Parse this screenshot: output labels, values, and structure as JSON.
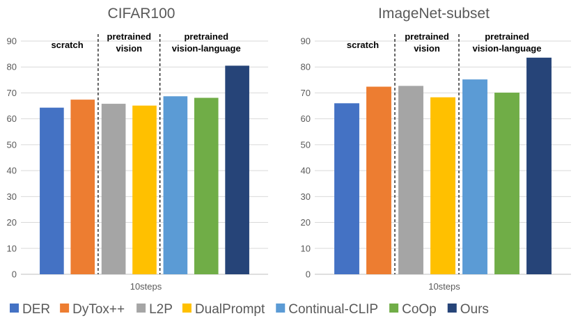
{
  "chart_data": [
    {
      "type": "bar",
      "title": "CIFAR100",
      "xlabel": "10steps",
      "ylabel": "",
      "ylim": [
        0,
        90
      ],
      "yticks": [
        0,
        10,
        20,
        30,
        40,
        50,
        60,
        70,
        80,
        90
      ],
      "grid": true,
      "categories": [
        "10steps"
      ],
      "group_labels": [
        {
          "lines": [
            "scratch"
          ]
        },
        {
          "lines": [
            "pretrained",
            "vision"
          ]
        },
        {
          "lines": [
            "pretrained",
            "vision-language"
          ]
        }
      ],
      "series": [
        {
          "name": "DER",
          "values": [
            64.3
          ]
        },
        {
          "name": "DyTox++",
          "values": [
            67.4
          ]
        },
        {
          "name": "L2P",
          "values": [
            65.8
          ]
        },
        {
          "name": "DualPrompt",
          "values": [
            65.1
          ]
        },
        {
          "name": "Continual-CLIP",
          "values": [
            68.7
          ]
        },
        {
          "name": "CoOp",
          "values": [
            68.1
          ]
        },
        {
          "name": "Ours",
          "values": [
            80.5
          ]
        }
      ]
    },
    {
      "type": "bar",
      "title": "ImageNet-subset",
      "xlabel": "10steps",
      "ylabel": "",
      "ylim": [
        0,
        90
      ],
      "yticks": [
        0,
        10,
        20,
        30,
        40,
        50,
        60,
        70,
        80,
        90
      ],
      "grid": true,
      "categories": [
        "10steps"
      ],
      "group_labels": [
        {
          "lines": [
            "scratch"
          ]
        },
        {
          "lines": [
            "pretrained",
            "vision"
          ]
        },
        {
          "lines": [
            "pretrained",
            "vision-language"
          ]
        }
      ],
      "series": [
        {
          "name": "DER",
          "values": [
            66.0
          ]
        },
        {
          "name": "DyTox++",
          "values": [
            72.4
          ]
        },
        {
          "name": "L2P",
          "values": [
            72.7
          ]
        },
        {
          "name": "DualPrompt",
          "values": [
            68.3
          ]
        },
        {
          "name": "Continual-CLIP",
          "values": [
            75.2
          ]
        },
        {
          "name": "CoOp",
          "values": [
            70.1
          ]
        },
        {
          "name": "Ours",
          "values": [
            83.6
          ]
        }
      ]
    }
  ],
  "legend": {
    "position": "bottom",
    "items": [
      {
        "name": "DER",
        "color": "#4472C4"
      },
      {
        "name": "DyTox++",
        "color": "#ED7D31"
      },
      {
        "name": "L2P",
        "color": "#A5A5A5"
      },
      {
        "name": "DualPrompt",
        "color": "#FFC000"
      },
      {
        "name": "Continual-CLIP",
        "color": "#5B9BD5"
      },
      {
        "name": "CoOp",
        "color": "#70AD47"
      },
      {
        "name": "Ours",
        "color": "#264478"
      }
    ]
  }
}
